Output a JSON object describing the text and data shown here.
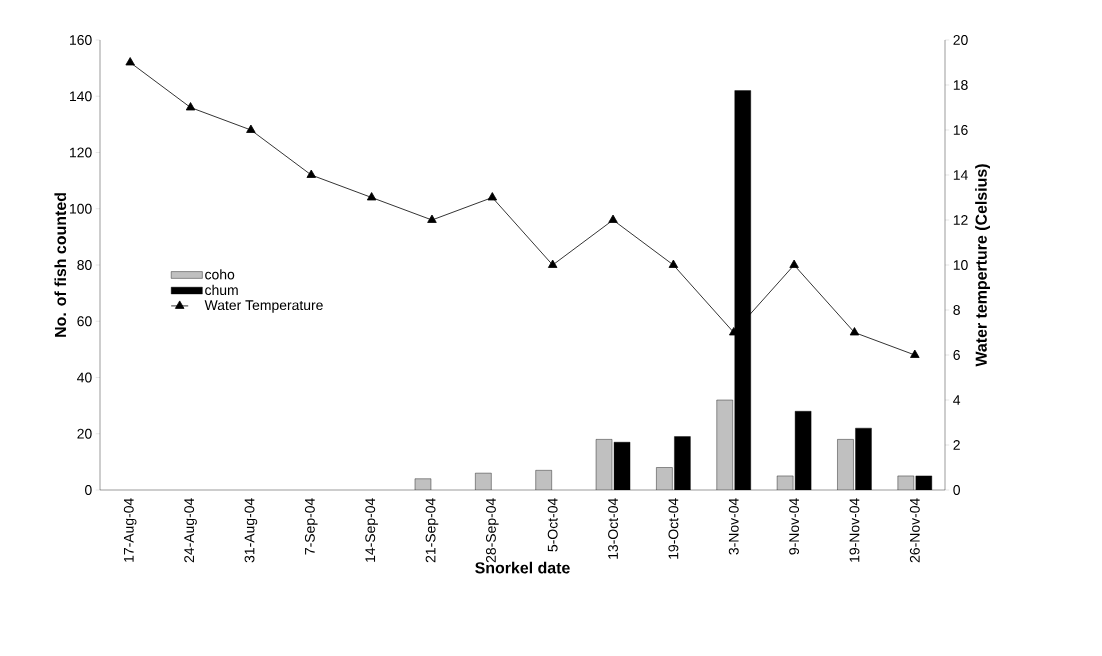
{
  "chart_data": {
    "type": "bar",
    "xlabel": "Snorkel date",
    "ylabel": "No. of fish counted",
    "y2label": "Water temperture (Celsius)",
    "categories": [
      "17-Aug-04",
      "24-Aug-04",
      "31-Aug-04",
      "7-Sep-04",
      "14-Sep-04",
      "21-Sep-04",
      "28-Sep-04",
      "5-Oct-04",
      "13-Oct-04",
      "19-Oct-04",
      "3-Nov-04",
      "9-Nov-04",
      "19-Nov-04",
      "26-Nov-04"
    ],
    "series": [
      {
        "name": "coho",
        "color": "#c0c0c0",
        "values": [
          null,
          null,
          null,
          null,
          null,
          4,
          6,
          7,
          18,
          8,
          32,
          5,
          18,
          5
        ]
      },
      {
        "name": "chum",
        "color": "#000000",
        "values": [
          null,
          null,
          null,
          null,
          null,
          null,
          null,
          null,
          17,
          19,
          142,
          28,
          22,
          5
        ]
      },
      {
        "name": "Water Temperature",
        "type": "line",
        "axis": "y2",
        "color": "#000000",
        "marker": "triangle",
        "values": [
          19,
          17,
          16,
          14,
          13,
          12,
          13,
          10,
          12,
          10,
          7,
          10,
          7,
          6
        ]
      }
    ],
    "ylim": [
      0,
      160
    ],
    "yticks": [
      0,
      20,
      40,
      60,
      80,
      100,
      120,
      140,
      160
    ],
    "y2lim": [
      0,
      20
    ],
    "y2ticks": [
      0,
      2,
      4,
      6,
      8,
      10,
      12,
      14,
      16,
      18,
      20
    ],
    "legend": "left",
    "grid": false
  }
}
